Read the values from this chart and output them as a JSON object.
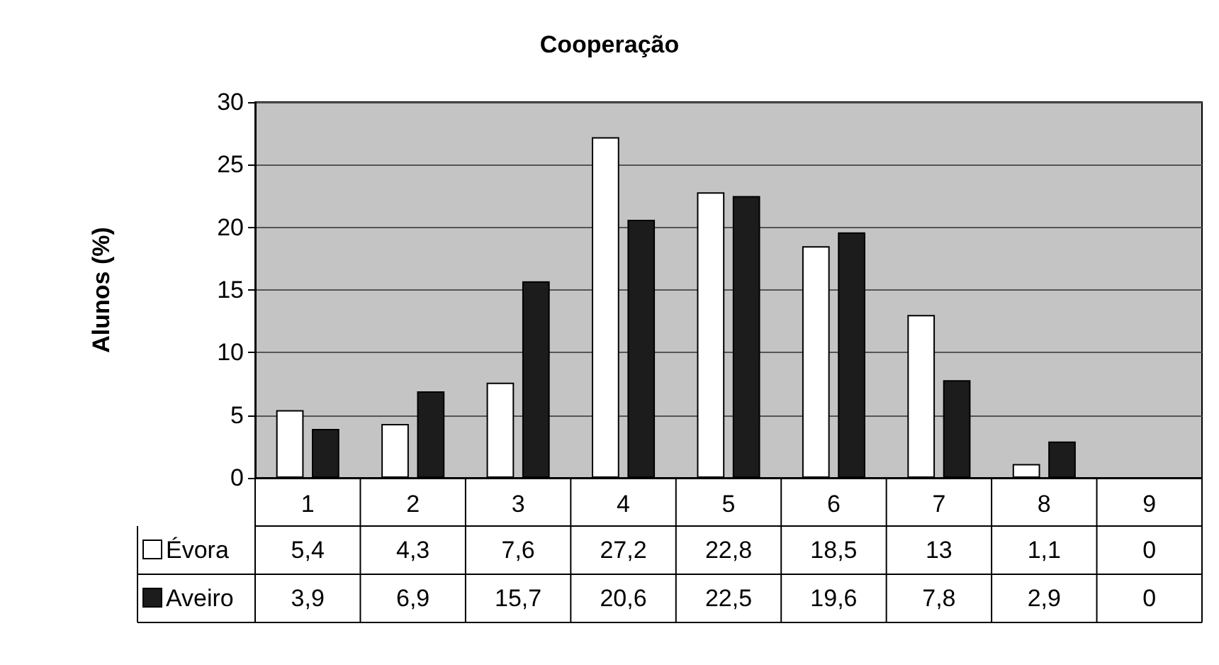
{
  "chart_data": {
    "type": "bar",
    "title": "Cooperação",
    "ylabel": "Alunos (%)",
    "categories": [
      "1",
      "2",
      "3",
      "4",
      "5",
      "6",
      "7",
      "8",
      "9"
    ],
    "series": [
      {
        "name": "Évora",
        "color": "#ffffff",
        "values": [
          5.4,
          4.3,
          7.6,
          27.2,
          22.8,
          18.5,
          13,
          1.1,
          0
        ],
        "value_labels": [
          "5,4",
          "4,3",
          "7,6",
          "27,2",
          "22,8",
          "18,5",
          "13",
          "1,1",
          "0"
        ]
      },
      {
        "name": "Aveiro",
        "color": "#1c1c1c",
        "values": [
          3.9,
          6.9,
          15.7,
          20.6,
          22.5,
          19.6,
          7.8,
          2.9,
          0
        ],
        "value_labels": [
          "3,9",
          "6,9",
          "15,7",
          "20,6",
          "22,5",
          "19,6",
          "7,8",
          "2,9",
          "0"
        ]
      }
    ],
    "ylim": [
      0,
      30
    ],
    "yticks": [
      0,
      5,
      10,
      15,
      20,
      25,
      30
    ],
    "grid": "y",
    "legend": "bottom left"
  }
}
